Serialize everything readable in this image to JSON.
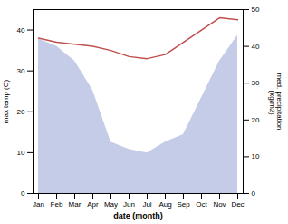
{
  "chart_data": {
    "type": "line",
    "categories": [
      "Jan",
      "Feb",
      "Mar",
      "Apr",
      "May",
      "Jun",
      "Jul",
      "Aug",
      "Sep",
      "Oct",
      "Nov",
      "Dec"
    ],
    "xlabel": "date (month)",
    "ylabel": "max temp (C)",
    "y2label": "med. precipitation\n (kg/m2)",
    "ylim": [
      0,
      45
    ],
    "yticks": [
      0,
      10,
      20,
      30,
      40
    ],
    "y2lim": [
      0,
      50
    ],
    "y2ticks": [
      0,
      10,
      20,
      30,
      40,
      50
    ],
    "series": [
      {
        "type": "area",
        "axis": "y2",
        "color": "#c5cce8",
        "values": [
          42,
          40,
          36,
          28,
          14,
          12,
          11,
          14,
          16,
          26,
          36,
          43
        ]
      },
      {
        "type": "line",
        "color": "#c0504d",
        "values": [
          38,
          37,
          36.5,
          36,
          35,
          33.5,
          33,
          34,
          37,
          40,
          43,
          42.5
        ]
      }
    ]
  }
}
